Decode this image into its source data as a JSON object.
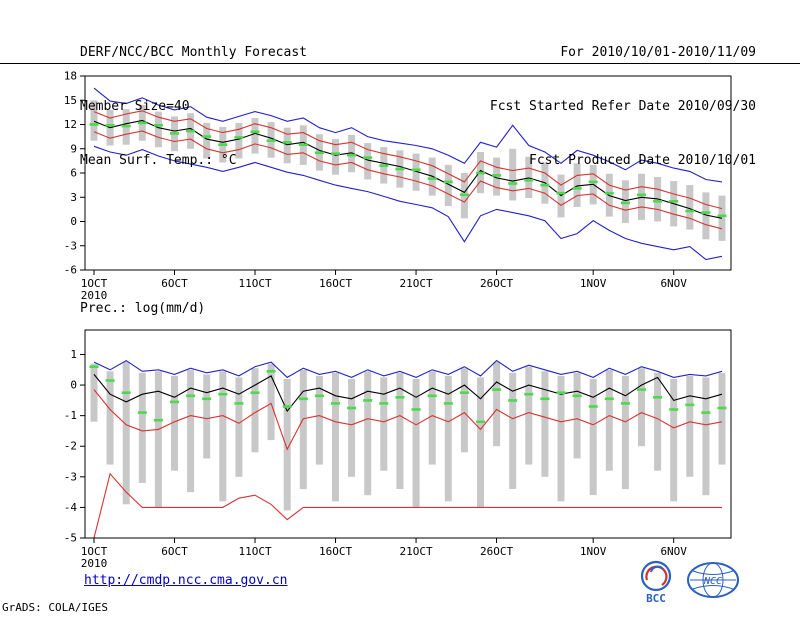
{
  "header": {
    "title": "DERF/NCC/BCC Monthly Forecast",
    "member_size": "Member Size=40",
    "temp_label": "Mean Surf. Temp.: °C",
    "for_range": "For 2010/10/01-2010/11/09",
    "fcst_refer": "Fcst Started Refer Date 2010/09/30",
    "fcst_produced": "Fcst Produced Date 2010/10/01"
  },
  "footer": {
    "url": "http://cmdp.ncc.cma.gov.cn",
    "credit": "GrADS: COLA/IGES",
    "bcc_label": "BCC",
    "ncc_label": "NCC"
  },
  "colors": {
    "line_blue": "#2222c8",
    "line_red": "#d83232",
    "line_black": "#000000",
    "median_green": "#4cd94c",
    "bar_gray": "#c8c8c8",
    "link_blue": "#0000cc",
    "logo_blue": "#2b5fc0",
    "logo_red": "#d03030"
  },
  "chart_data": [
    {
      "type": "line",
      "title": "Mean Surf. Temp.: °C",
      "x_days": 40,
      "x_tick_days": [
        1,
        6,
        11,
        16,
        21,
        26,
        32,
        37
      ],
      "x_tick_labels": [
        "1OCT",
        "6OCT",
        "11OCT",
        "16OCT",
        "21OCT",
        "26OCT",
        "1NOV",
        "6NOV"
      ],
      "x_sub_label": "2010",
      "ylim": [
        -6,
        18
      ],
      "yticks": [
        18,
        15,
        12,
        9,
        6,
        3,
        0,
        -3,
        -6
      ],
      "grid": false,
      "legend": "none",
      "series": [
        {
          "name": "ensemble-max",
          "color": "#2222c8",
          "style": "line",
          "values": [
            16.5,
            14.9,
            14.6,
            15.3,
            14.4,
            13.8,
            14.2,
            12.9,
            12.4,
            13.0,
            13.6,
            13.1,
            12.4,
            12.8,
            11.6,
            11.0,
            11.6,
            10.5,
            10.0,
            9.7,
            9.4,
            9.0,
            8.2,
            7.2,
            9.8,
            9.2,
            11.9,
            9.4,
            8.6,
            7.2,
            8.8,
            8.2,
            7.4,
            6.4,
            7.6,
            7.2,
            6.6,
            6.2,
            5.2,
            4.9
          ]
        },
        {
          "name": "upper-std",
          "color": "#d83232",
          "style": "line",
          "values": [
            13.6,
            12.8,
            13.3,
            13.7,
            12.9,
            12.4,
            12.7,
            11.5,
            11.0,
            11.4,
            12.1,
            11.6,
            10.8,
            11.0,
            10.0,
            9.5,
            9.8,
            8.9,
            8.4,
            8.0,
            7.5,
            6.9,
            5.9,
            4.9,
            7.5,
            6.7,
            6.3,
            6.6,
            6.0,
            4.5,
            5.7,
            5.9,
            4.5,
            3.9,
            4.3,
            4.0,
            3.4,
            2.9,
            2.1,
            1.6
          ]
        },
        {
          "name": "lower-std",
          "color": "#d83232",
          "style": "line",
          "values": [
            11.1,
            10.3,
            10.8,
            11.2,
            10.4,
            9.9,
            10.2,
            9.0,
            8.5,
            8.9,
            9.6,
            9.1,
            8.3,
            8.5,
            7.5,
            7.0,
            7.3,
            6.4,
            5.9,
            5.5,
            5.0,
            4.4,
            3.4,
            2.4,
            5.0,
            4.2,
            3.8,
            4.1,
            3.5,
            2.0,
            3.2,
            3.4,
            2.0,
            1.4,
            1.8,
            1.5,
            0.9,
            0.4,
            -0.4,
            -0.9
          ]
        },
        {
          "name": "ensemble-min",
          "color": "#2222c8",
          "style": "line",
          "values": [
            9.3,
            8.6,
            8.2,
            8.9,
            8.1,
            7.5,
            7.1,
            6.7,
            6.2,
            6.7,
            7.3,
            6.7,
            6.1,
            5.7,
            5.1,
            4.5,
            4.1,
            3.7,
            3.1,
            2.5,
            2.1,
            1.7,
            0.6,
            -2.5,
            0.7,
            1.5,
            1.1,
            0.7,
            0.1,
            -2.1,
            -1.5,
            0.1,
            -1.1,
            -2.1,
            -2.7,
            -3.1,
            -3.5,
            -3.1,
            -4.7,
            -4.3
          ]
        },
        {
          "name": "ensemble-mean",
          "color": "#000000",
          "style": "line",
          "values": [
            12.4,
            11.6,
            12.1,
            12.5,
            11.6,
            11.2,
            11.5,
            10.2,
            9.8,
            10.2,
            10.9,
            10.3,
            9.5,
            9.8,
            8.8,
            8.2,
            8.5,
            7.6,
            7.2,
            6.8,
            6.2,
            5.6,
            4.6,
            3.6,
            6.3,
            5.4,
            5.0,
            5.4,
            4.8,
            3.2,
            4.4,
            4.6,
            3.2,
            2.6,
            3.0,
            2.8,
            2.2,
            1.6,
            0.8,
            0.4
          ]
        },
        {
          "name": "ensemble-median",
          "color": "#4cd94c",
          "style": "dashes",
          "values": [
            12.0,
            11.9,
            11.8,
            12.2,
            11.9,
            10.9,
            11.2,
            10.5,
            9.5,
            10.4,
            11.1,
            10.0,
            9.8,
            9.5,
            8.5,
            8.4,
            8.2,
            7.9,
            6.9,
            6.5,
            6.4,
            5.3,
            4.9,
            3.3,
            6.0,
            5.7,
            4.7,
            5.1,
            4.5,
            3.5,
            4.1,
            4.9,
            3.5,
            2.3,
            3.3,
            2.5,
            2.5,
            1.3,
            1.1,
            0.7
          ]
        }
      ],
      "bars": {
        "color": "#c8c8c8",
        "top": [
          15.0,
          13.8,
          13.9,
          14.4,
          13.6,
          13.0,
          13.4,
          12.2,
          11.7,
          12.2,
          12.8,
          12.3,
          11.6,
          11.9,
          10.8,
          10.2,
          10.7,
          9.7,
          9.2,
          8.8,
          8.4,
          7.9,
          7.0,
          6.0,
          8.6,
          7.9,
          9.0,
          8.0,
          7.3,
          5.8,
          7.2,
          7.0,
          5.9,
          5.1,
          5.9,
          5.5,
          5.0,
          4.5,
          3.6,
          3.2
        ],
        "bottom": [
          10.0,
          9.4,
          9.5,
          10.0,
          9.2,
          8.7,
          9.0,
          7.8,
          7.3,
          7.8,
          8.4,
          7.9,
          7.2,
          7.0,
          6.3,
          5.8,
          6.1,
          5.2,
          4.7,
          4.2,
          3.8,
          3.2,
          1.9,
          0.4,
          3.5,
          3.2,
          2.6,
          2.9,
          2.2,
          0.5,
          1.8,
          2.1,
          0.6,
          -0.2,
          0.2,
          0.0,
          -0.6,
          -1.0,
          -2.2,
          -2.4
        ]
      }
    },
    {
      "type": "line",
      "title": "Prec.: log(mm/d)",
      "x_days": 40,
      "x_tick_days": [
        1,
        6,
        11,
        16,
        21,
        26,
        32,
        37
      ],
      "x_tick_labels": [
        "1OCT",
        "6OCT",
        "11OCT",
        "16OCT",
        "21OCT",
        "26OCT",
        "1NOV",
        "6NOV"
      ],
      "x_sub_label": "2010",
      "ylim": [
        -5,
        1.8
      ],
      "yticks": [
        1,
        0,
        -1,
        -2,
        -3,
        -4,
        -5
      ],
      "grid": false,
      "legend": "none",
      "series": [
        {
          "name": "ensemble-max",
          "color": "#2222c8",
          "style": "line",
          "values": [
            0.75,
            0.5,
            0.8,
            0.45,
            0.5,
            0.35,
            0.55,
            0.4,
            0.5,
            0.3,
            0.6,
            0.75,
            0.25,
            0.55,
            0.35,
            0.45,
            0.25,
            0.5,
            0.3,
            0.45,
            0.25,
            0.5,
            0.35,
            0.6,
            0.3,
            0.8,
            0.45,
            0.65,
            0.5,
            0.35,
            0.45,
            0.25,
            0.55,
            0.35,
            0.6,
            0.45,
            0.25,
            0.35,
            0.3,
            0.45
          ]
        },
        {
          "name": "lower-std",
          "color": "#d83232",
          "style": "line",
          "values": [
            -0.15,
            -0.8,
            -1.3,
            -1.5,
            -1.45,
            -1.2,
            -1.0,
            -1.1,
            -1.0,
            -1.25,
            -0.9,
            -0.6,
            -2.1,
            -1.1,
            -1.0,
            -1.2,
            -1.3,
            -1.1,
            -1.2,
            -1.0,
            -1.3,
            -1.0,
            -1.2,
            -0.9,
            -1.45,
            -0.8,
            -1.1,
            -0.9,
            -1.05,
            -1.2,
            -1.1,
            -1.3,
            -1.0,
            -1.2,
            -0.9,
            -1.1,
            -1.4,
            -1.2,
            -1.3,
            -1.2
          ]
        },
        {
          "name": "ensemble-min",
          "color": "#d83232",
          "style": "line",
          "values": [
            -5.0,
            -2.9,
            -3.5,
            -4.0,
            -4.0,
            -4.0,
            -4.0,
            -4.0,
            -4.0,
            -3.7,
            -3.6,
            -3.9,
            -4.4,
            -4.0,
            -4.0,
            -4.0,
            -4.0,
            -4.0,
            -4.0,
            -4.0,
            -4.0,
            -4.0,
            -4.0,
            -4.0,
            -4.0,
            -4.0,
            -4.0,
            -4.0,
            -4.0,
            -4.0,
            -4.0,
            -4.0,
            -4.0,
            -4.0,
            -4.0,
            -4.0,
            -4.0,
            -4.0,
            -4.0,
            -4.0
          ]
        },
        {
          "name": "ensemble-mean",
          "color": "#000000",
          "style": "line",
          "values": [
            0.35,
            -0.3,
            -0.55,
            -0.3,
            -0.2,
            -0.4,
            -0.1,
            -0.25,
            -0.1,
            -0.3,
            0.0,
            0.3,
            -0.85,
            -0.2,
            -0.1,
            -0.35,
            -0.45,
            -0.2,
            -0.3,
            -0.1,
            -0.4,
            -0.1,
            -0.3,
            0.0,
            -0.45,
            0.1,
            -0.2,
            0.0,
            -0.15,
            -0.3,
            -0.2,
            -0.4,
            -0.1,
            -0.35,
            0.0,
            0.25,
            -0.5,
            -0.35,
            -0.45,
            -0.3
          ]
        },
        {
          "name": "ensemble-median",
          "color": "#4cd94c",
          "style": "dashes",
          "values": [
            0.6,
            0.15,
            -0.25,
            -0.9,
            -1.15,
            -0.55,
            -0.35,
            -0.45,
            -0.3,
            -0.6,
            -0.25,
            0.45,
            -0.7,
            -0.45,
            -0.35,
            -0.6,
            -0.75,
            -0.5,
            -0.6,
            -0.4,
            -0.8,
            -0.35,
            -0.6,
            -0.25,
            -1.2,
            -0.15,
            -0.5,
            -0.3,
            -0.45,
            -0.25,
            -0.35,
            -0.7,
            -0.45,
            -0.6,
            -0.15,
            -0.4,
            -0.8,
            -0.65,
            -0.9,
            -0.75
          ]
        }
      ],
      "bars": {
        "color": "#c8c8c8",
        "top": [
          0.7,
          0.45,
          0.75,
          0.4,
          0.45,
          0.3,
          0.5,
          0.35,
          0.45,
          0.25,
          0.55,
          0.7,
          0.2,
          0.5,
          0.3,
          0.4,
          0.2,
          0.45,
          0.25,
          0.4,
          0.2,
          0.45,
          0.3,
          0.55,
          0.25,
          0.75,
          0.4,
          0.6,
          0.45,
          0.3,
          0.4,
          0.2,
          0.5,
          0.3,
          0.55,
          0.4,
          0.2,
          0.3,
          0.25,
          0.4
        ],
        "bottom": [
          -1.2,
          -2.6,
          -3.9,
          -3.2,
          -4.0,
          -2.8,
          -3.5,
          -2.4,
          -3.8,
          -3.0,
          -2.2,
          -1.8,
          -4.1,
          -3.4,
          -2.6,
          -3.8,
          -3.0,
          -3.6,
          -2.8,
          -3.4,
          -4.0,
          -2.6,
          -3.8,
          -2.2,
          -4.0,
          -2.0,
          -3.4,
          -2.6,
          -3.0,
          -3.8,
          -2.4,
          -3.6,
          -2.8,
          -3.4,
          -2.0,
          -2.8,
          -3.8,
          -3.0,
          -3.6,
          -2.6
        ]
      }
    }
  ]
}
